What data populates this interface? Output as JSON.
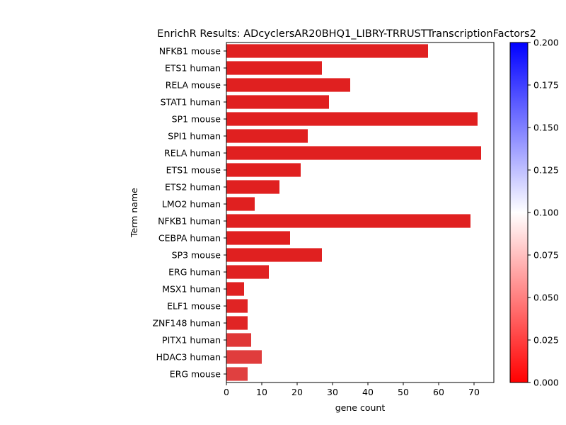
{
  "chart_data": {
    "type": "bar",
    "orientation": "horizontal",
    "title": "EnrichR Results: ADcyclersAR20BHQ1_LIBRY-TRRUSTTranscriptionFactors2",
    "xlabel": "gene count",
    "ylabel": "Term name",
    "xlim": [
      0,
      75.6
    ],
    "xticks": [
      0,
      10,
      20,
      30,
      40,
      50,
      60,
      70
    ],
    "grid": false,
    "categories": [
      "NFKB1 mouse",
      "ETS1 human",
      "RELA mouse",
      "STAT1 human",
      "SP1 mouse",
      "SPI1 human",
      "RELA human",
      "ETS1 mouse",
      "ETS2 human",
      "LMO2 human",
      "NFKB1 human",
      "CEBPA human",
      "SP3 mouse",
      "ERG human",
      "MSX1 human",
      "ELF1 mouse",
      "ZNF148 human",
      "PITX1 human",
      "HDAC3 human",
      "ERG mouse"
    ],
    "values": [
      57,
      27,
      35,
      29,
      71,
      23,
      72,
      21,
      15,
      8,
      69,
      18,
      27,
      12,
      5,
      6,
      6,
      7,
      10,
      6
    ],
    "bar_colors": [
      "#e02020",
      "#e02020",
      "#e02020",
      "#e02020",
      "#e02020",
      "#e02020",
      "#e02020",
      "#e02020",
      "#e02020",
      "#e02020",
      "#e02020",
      "#e02020",
      "#e02020",
      "#e02222",
      "#e02222",
      "#e02424",
      "#e02424",
      "#e03838",
      "#e03c3c",
      "#e04040"
    ],
    "colorbar": {
      "colormap": "bwr_r",
      "range": [
        0.0,
        0.2
      ],
      "ticks": [
        "0.000",
        "0.025",
        "0.050",
        "0.075",
        "0.100",
        "0.125",
        "0.150",
        "0.175",
        "0.200"
      ],
      "low_color": "#ff0000",
      "mid_color": "#ffffff",
      "high_color": "#0000ff"
    }
  }
}
